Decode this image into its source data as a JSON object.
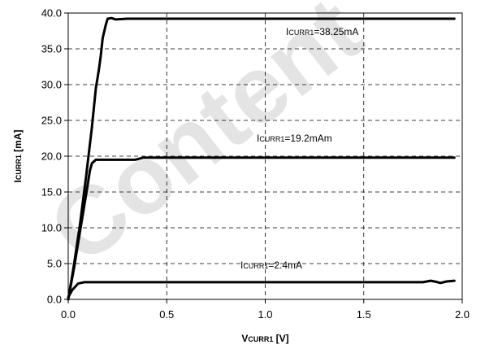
{
  "chart_data": {
    "type": "line",
    "xlabel": {
      "main": "V",
      "sub": "CURR1",
      "unit": " [V]"
    },
    "ylabel": {
      "main": "I",
      "sub": "CURR1",
      "unit": " [mA]"
    },
    "xlim": [
      0.0,
      2.0
    ],
    "ylim": [
      0.0,
      40.0
    ],
    "xticks": [
      0.0,
      0.5,
      1.0,
      1.5,
      2.0
    ],
    "xtick_labels": [
      "0.0",
      "0.5",
      "1.0",
      "1.5",
      "2.0"
    ],
    "yticks": [
      0,
      5,
      10,
      15,
      20,
      25,
      30,
      35,
      40
    ],
    "ytick_labels": [
      "0.0",
      "5.0",
      "10.0",
      "15.0",
      "20.0",
      "25.0",
      "30.0",
      "35.0",
      "40.0"
    ],
    "grid": true,
    "grid_style": "dashed",
    "line_color": "#000000",
    "watermark": "Content",
    "series": [
      {
        "annotation": {
          "main": "I",
          "sub": "CURR1",
          "rest": "=38.25mA"
        },
        "points": [
          [
            0.0,
            0.0
          ],
          [
            0.03,
            5.0
          ],
          [
            0.06,
            10.5
          ],
          [
            0.09,
            17.0
          ],
          [
            0.12,
            24.0
          ],
          [
            0.14,
            29.5
          ],
          [
            0.155,
            32.0
          ],
          [
            0.165,
            34.0
          ],
          [
            0.175,
            36.5
          ],
          [
            0.19,
            38.3
          ],
          [
            0.2,
            39.2
          ],
          [
            0.22,
            39.3
          ],
          [
            0.24,
            39.1
          ],
          [
            0.3,
            39.2
          ],
          [
            1.0,
            39.2
          ],
          [
            1.5,
            39.2
          ],
          [
            1.96,
            39.2
          ]
        ]
      },
      {
        "annotation": {
          "main": "I",
          "sub": "CURR1",
          "rest": "=19.2mAm"
        },
        "points": [
          [
            0.0,
            0.0
          ],
          [
            0.03,
            4.5
          ],
          [
            0.06,
            9.5
          ],
          [
            0.09,
            14.5
          ],
          [
            0.11,
            18.0
          ],
          [
            0.12,
            19.0
          ],
          [
            0.14,
            19.5
          ],
          [
            0.2,
            19.5
          ],
          [
            0.34,
            19.5
          ],
          [
            0.38,
            19.8
          ],
          [
            0.5,
            19.8
          ],
          [
            1.0,
            19.8
          ],
          [
            1.5,
            19.8
          ],
          [
            1.96,
            19.8
          ]
        ]
      },
      {
        "annotation": {
          "main": "I",
          "sub": "CURR1",
          "rest": "=2.4mA"
        },
        "points": [
          [
            0.0,
            0.3
          ],
          [
            0.02,
            1.3
          ],
          [
            0.05,
            2.2
          ],
          [
            0.08,
            2.4
          ],
          [
            0.5,
            2.4
          ],
          [
            1.0,
            2.4
          ],
          [
            1.5,
            2.4
          ],
          [
            1.8,
            2.4
          ],
          [
            1.84,
            2.6
          ],
          [
            1.86,
            2.5
          ],
          [
            1.89,
            2.3
          ],
          [
            1.92,
            2.5
          ],
          [
            1.96,
            2.6
          ]
        ]
      }
    ]
  }
}
